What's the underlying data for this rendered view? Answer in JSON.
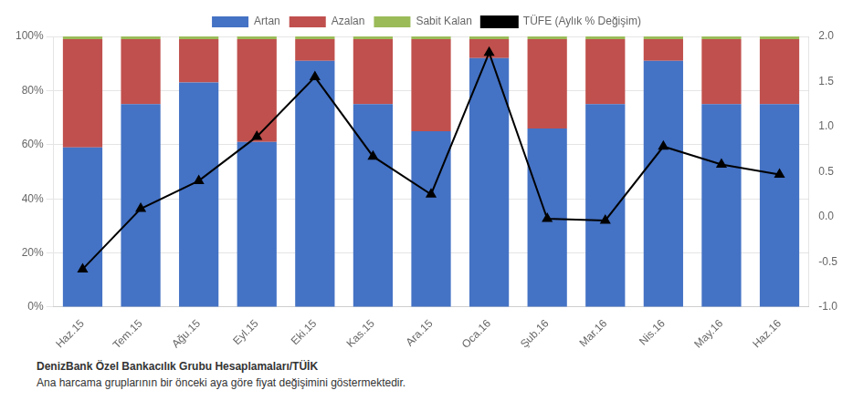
{
  "chart_data": {
    "type": "bar",
    "categories": [
      "Haz.15",
      "Tem.15",
      "Ağu.15",
      "Eyl.15",
      "Eki.15",
      "Kas.15",
      "Ara.15",
      "Oca.16",
      "Şub.16",
      "Mar.16",
      "Nis.16",
      "May.16",
      "Haz.16"
    ],
    "series": [
      {
        "name": "Artan",
        "color": "#4472C4",
        "values": [
          0.59,
          0.75,
          0.83,
          0.61,
          0.91,
          0.75,
          0.65,
          0.92,
          0.66,
          0.75,
          0.91,
          0.75,
          0.75
        ]
      },
      {
        "name": "Azalan",
        "color": "#C0504D",
        "values": [
          0.4,
          0.24,
          0.16,
          0.38,
          0.08,
          0.24,
          0.34,
          0.07,
          0.33,
          0.24,
          0.08,
          0.24,
          0.24
        ]
      },
      {
        "name": "Sabit Kalan",
        "color": "#9BBB59",
        "values": [
          0.01,
          0.01,
          0.01,
          0.01,
          0.01,
          0.01,
          0.01,
          0.01,
          0.01,
          0.01,
          0.01,
          0.01,
          0.01
        ]
      },
      {
        "name": "TÜFE (Aylık % Değişim)",
        "type": "line",
        "axis": "y2",
        "color": "#000000",
        "marker": "triangle",
        "values": [
          -0.58,
          0.09,
          0.4,
          0.89,
          1.55,
          0.67,
          0.25,
          1.82,
          -0.02,
          -0.04,
          0.78,
          0.58,
          0.47
        ]
      }
    ],
    "stacked": true,
    "ylim": [
      0.0,
      1.0
    ],
    "yticks": [
      {
        "value": 0.0,
        "label": "0%"
      },
      {
        "value": 0.2,
        "label": "20%"
      },
      {
        "value": 0.4,
        "label": "40%"
      },
      {
        "value": 0.6,
        "label": "60%"
      },
      {
        "value": 0.8,
        "label": "80%"
      },
      {
        "value": 1.0,
        "label": "100%"
      }
    ],
    "y2lim": [
      -1.0,
      2.0
    ],
    "y2ticks": [
      {
        "value": -1.0,
        "label": "-1.0"
      },
      -0.5,
      {
        "value": 0.0,
        "label": "0.0"
      },
      0.5,
      {
        "value": 1.0,
        "label": "1.0"
      },
      1.5,
      {
        "value": 2.0,
        "label": "2.0"
      }
    ],
    "grid": true,
    "legend": "top",
    "annotations": [
      "DenizBank Özel Bankacılık Grubu Hesaplamaları/TÜİK",
      "Ana harcama gruplarının bir önceki aya göre fiyat değişimini göstermektedir."
    ]
  }
}
